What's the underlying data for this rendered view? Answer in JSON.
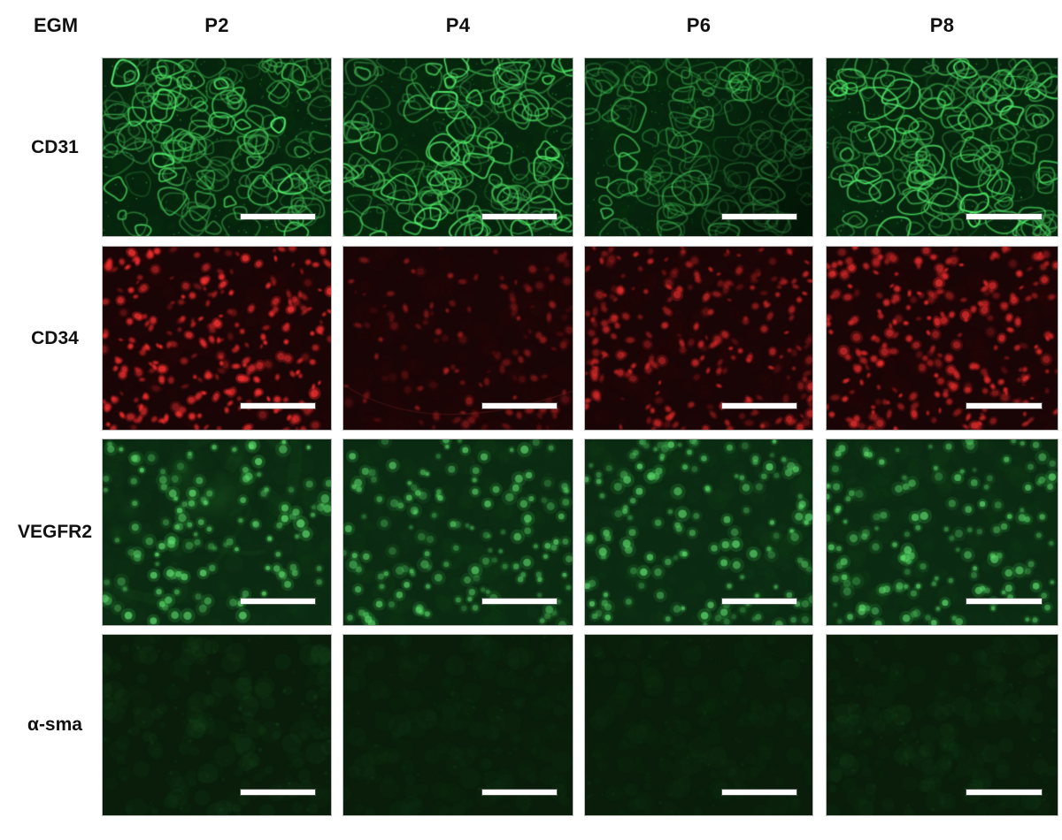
{
  "figure": {
    "corner_label": "EGM",
    "columns": [
      "P2",
      "P4",
      "P6",
      "P8"
    ],
    "rows": [
      "CD31",
      "CD34",
      "VEGFR2",
      "α-sma"
    ],
    "scale_bar_color": "#ffffff",
    "stains": [
      {
        "marker": "CD31",
        "pattern": "network",
        "color": "#3cd253",
        "bg": "#06240d"
      },
      {
        "marker": "CD34",
        "pattern": "nuclei",
        "color": "#e02626",
        "bg": "#1a0506"
      },
      {
        "marker": "VEGFR2",
        "pattern": "cells",
        "color": "#3fc24f",
        "bg": "#0b2a12"
      },
      {
        "marker": "α-sma",
        "pattern": "faint",
        "color": "#2f8a3a",
        "bg": "#091d0a"
      }
    ],
    "panels": [
      {
        "row": 0,
        "col": 0,
        "seed": 11,
        "intensity": 0.95,
        "density": 1.0
      },
      {
        "row": 0,
        "col": 1,
        "seed": 12,
        "intensity": 0.9,
        "density": 1.0
      },
      {
        "row": 0,
        "col": 2,
        "seed": 13,
        "intensity": 0.62,
        "density": 0.9,
        "shade": 0.55
      },
      {
        "row": 0,
        "col": 3,
        "seed": 14,
        "intensity": 1.0,
        "density": 1.0
      },
      {
        "row": 1,
        "col": 0,
        "seed": 21,
        "intensity": 1.0,
        "density": 1.0
      },
      {
        "row": 1,
        "col": 1,
        "seed": 22,
        "intensity": 0.45,
        "density": 0.5,
        "scratch": true
      },
      {
        "row": 1,
        "col": 2,
        "seed": 23,
        "intensity": 0.7,
        "density": 0.9
      },
      {
        "row": 1,
        "col": 3,
        "seed": 24,
        "intensity": 0.88,
        "density": 1.0
      },
      {
        "row": 2,
        "col": 0,
        "seed": 31,
        "intensity": 0.9,
        "density": 0.9,
        "diffuse": true
      },
      {
        "row": 2,
        "col": 1,
        "seed": 32,
        "intensity": 0.8,
        "density": 1.0
      },
      {
        "row": 2,
        "col": 2,
        "seed": 33,
        "intensity": 0.85,
        "density": 1.0
      },
      {
        "row": 2,
        "col": 3,
        "seed": 34,
        "intensity": 0.85,
        "density": 1.0
      },
      {
        "row": 3,
        "col": 0,
        "seed": 41,
        "intensity": 0.5,
        "density": 1.0
      },
      {
        "row": 3,
        "col": 1,
        "seed": 42,
        "intensity": 0.35,
        "density": 0.9
      },
      {
        "row": 3,
        "col": 2,
        "seed": 43,
        "intensity": 0.3,
        "density": 0.9
      },
      {
        "row": 3,
        "col": 3,
        "seed": 44,
        "intensity": 0.45,
        "density": 0.9
      }
    ]
  }
}
